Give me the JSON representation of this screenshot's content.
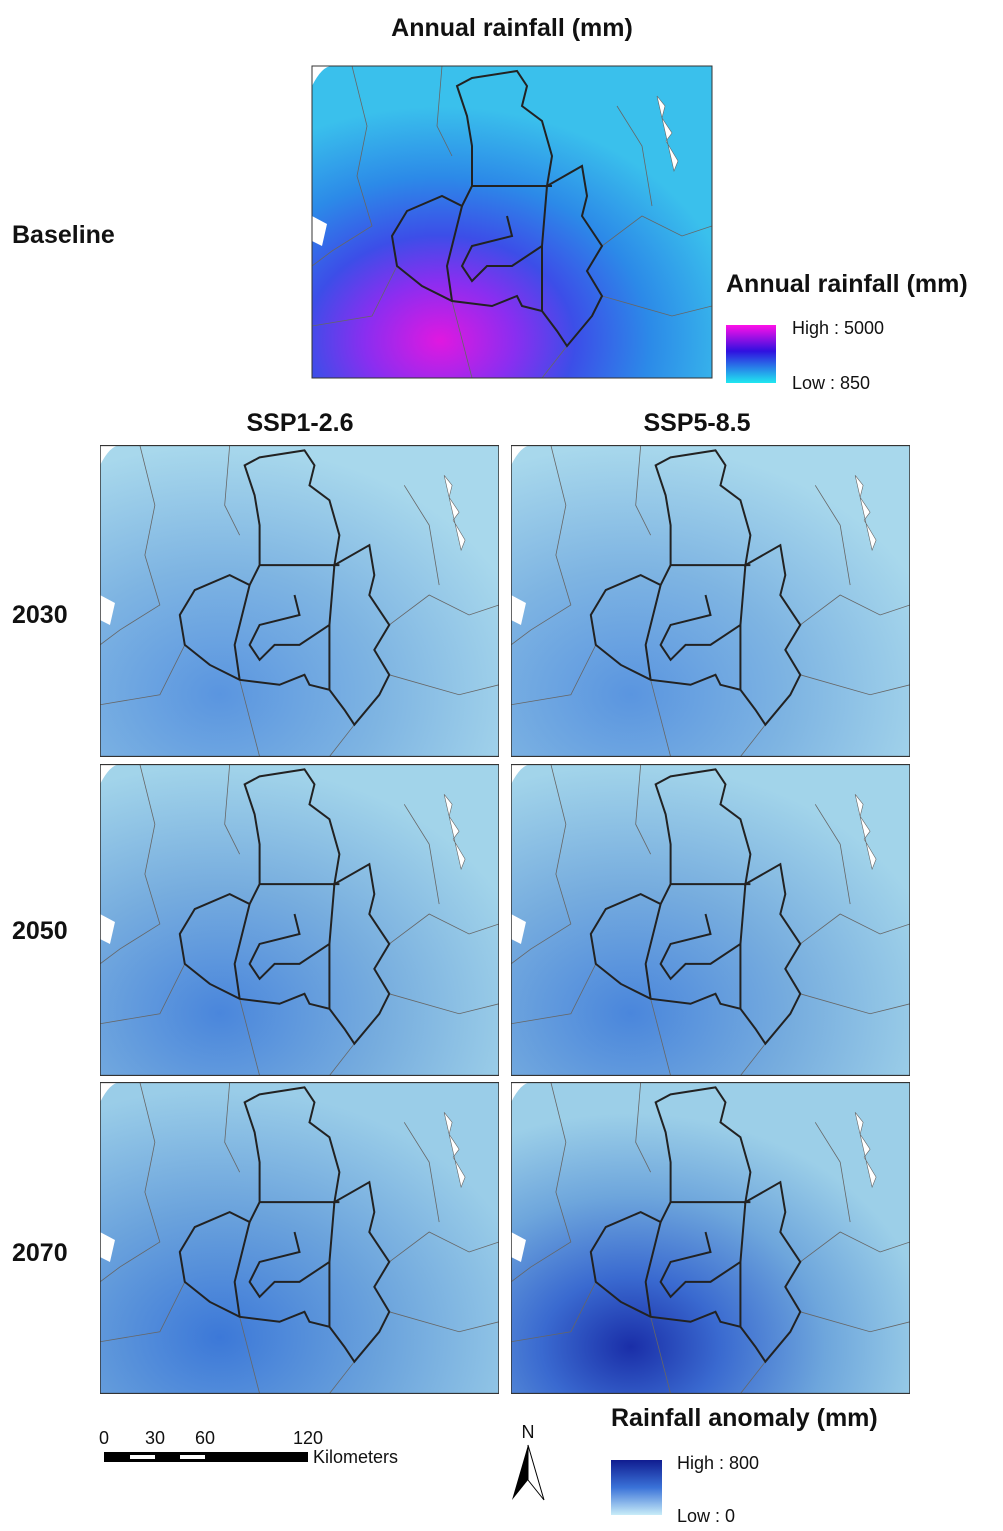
{
  "header": {
    "title": "Annual rainfall (mm)"
  },
  "baseline": {
    "label": "Baseline",
    "legend": {
      "title": "Annual rainfall (mm)",
      "high": "High : 5000",
      "low": "Low : 850"
    }
  },
  "columns": [
    "SSP1-2.6",
    "SSP5-8.5"
  ],
  "rows": [
    "2030",
    "2050",
    "2070"
  ],
  "scale_bar": {
    "ticks": [
      "0",
      "30",
      "60",
      "120"
    ],
    "unit": "Kilometers"
  },
  "north": "N",
  "anomaly_legend": {
    "title": "Rainfall anomaly (mm)",
    "high": "High : 800",
    "low": "Low : 0"
  }
}
